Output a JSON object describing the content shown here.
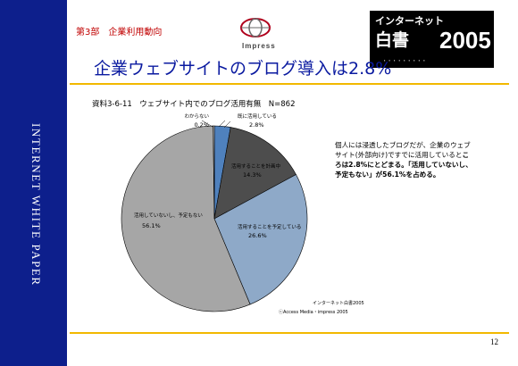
{
  "sidebar": {
    "text": "INTERNET WHITE PAPER"
  },
  "header": {
    "section_label": "第3部　企業利用動向",
    "logo_text": "Impress",
    "book_logo": {
      "line1": "インターネット",
      "line2": "白書",
      "line3": "2005"
    }
  },
  "slide": {
    "title": "企業ウェブサイトのブログ導入は2.8%"
  },
  "chart_data": {
    "type": "pie",
    "title": "資料3-6-11　ウェブサイト内でのブログ活用有無　N=862",
    "slices": [
      {
        "label": "既に活用している",
        "value": 2.8,
        "value_label": "2.8%",
        "color": "#4f81bd"
      },
      {
        "label": "活用することを計画中",
        "value": 14.3,
        "value_label": "14.3%",
        "color": "#4d4d4d"
      },
      {
        "label": "活用することを予定している",
        "value": 26.6,
        "value_label": "26.6%",
        "color": "#8ea9c8"
      },
      {
        "label": "活用していないし、予定もない",
        "value": 56.1,
        "value_label": "56.1%",
        "color": "#a6a6a6"
      },
      {
        "label": "わからない",
        "value": 0.2,
        "value_label": "0.2%",
        "color": "#d9d9d9"
      }
    ]
  },
  "note": {
    "part1": "個人には浸透したブログだが、企業のウェブサイト(外部向け)ですでに活用していると",
    "part2": "ころは2.8%にとどまる。「活用していないし、予定もない」が56.1%を占める。"
  },
  "source": {
    "line1": "インターネット白書2005",
    "line2": "ⓒAccess Media・impress 2005"
  },
  "page": {
    "number": "12"
  }
}
